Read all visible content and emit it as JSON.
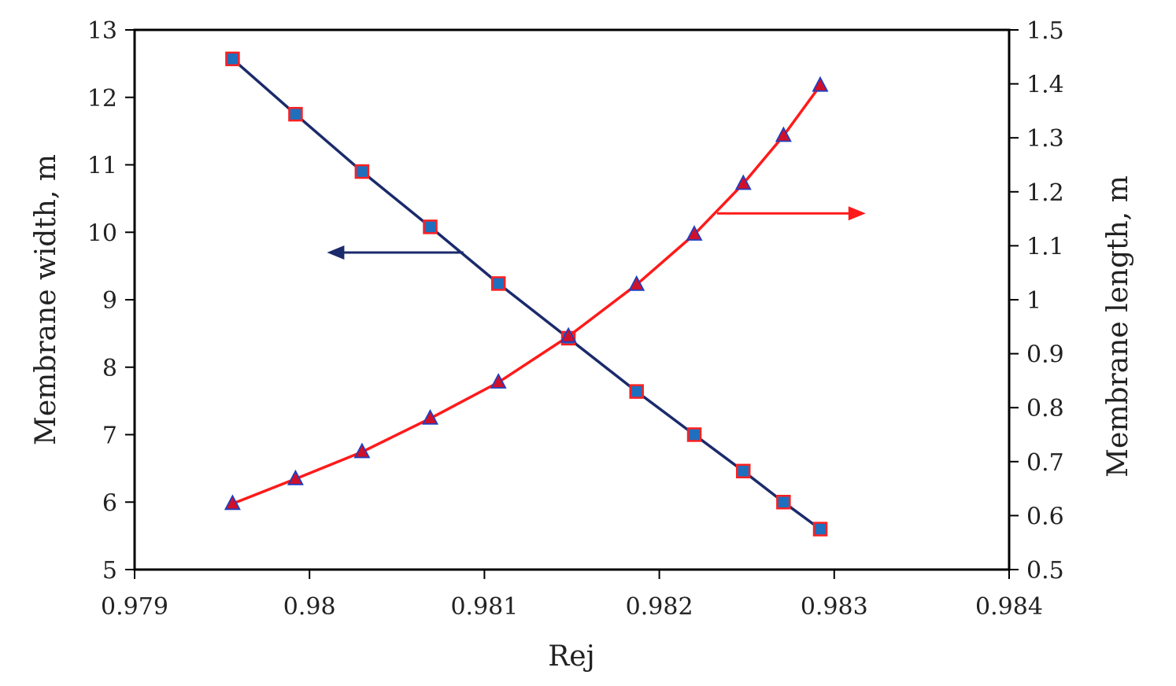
{
  "chart_data": {
    "type": "line",
    "title": "",
    "xlabel": "Rej",
    "ylabel_left": "Membrane  width,  m",
    "ylabel_right": "Membrane  length,  m",
    "xlim": [
      0.979,
      0.984
    ],
    "ylim_left": [
      5,
      13
    ],
    "ylim_right": [
      0.5,
      1.5
    ],
    "x_ticks": [
      "0.979",
      "0.98",
      "0.981",
      "0.982",
      "0.983",
      "0.984"
    ],
    "y_left_ticks": [
      "5",
      "6",
      "7",
      "8",
      "9",
      "10",
      "11",
      "12",
      "13"
    ],
    "y_right_ticks": [
      "0.5",
      "0.6",
      "0.7",
      "0.8",
      "0.9",
      "1",
      "1.1",
      "1.2",
      "1.3",
      "1.4",
      "1.5"
    ],
    "grid": false,
    "legend": "none",
    "series": [
      {
        "axis": "left",
        "color": "#1b2a6b",
        "marker": "square",
        "marker_fill": "#1f6fbf",
        "marker_edge": "#ff2020",
        "points": [
          [
            0.97956,
            12.57
          ],
          [
            0.97992,
            11.75
          ],
          [
            0.9803,
            10.9
          ],
          [
            0.98069,
            10.08
          ],
          [
            0.98108,
            9.24
          ],
          [
            0.98148,
            8.43
          ],
          [
            0.98187,
            7.64
          ],
          [
            0.9822,
            7.0
          ],
          [
            0.98248,
            6.46
          ],
          [
            0.98271,
            6.0
          ],
          [
            0.98292,
            5.6
          ]
        ]
      },
      {
        "axis": "right",
        "color": "#ff1a1a",
        "marker": "triangle",
        "marker_fill": "#d0102a",
        "marker_edge": "#1f3fbf",
        "points": [
          [
            0.97956,
            0.622
          ],
          [
            0.97992,
            0.668
          ],
          [
            0.9803,
            0.718
          ],
          [
            0.98069,
            0.78
          ],
          [
            0.98108,
            0.847
          ],
          [
            0.98148,
            0.932
          ],
          [
            0.98187,
            1.028
          ],
          [
            0.9822,
            1.121
          ],
          [
            0.98248,
            1.215
          ],
          [
            0.98271,
            1.304
          ],
          [
            0.98292,
            1.397
          ]
        ]
      }
    ],
    "annotations": [
      {
        "type": "arrow",
        "color": "#1b2a6b",
        "direction": "left",
        "from": [
          0.98088,
          9.7
        ],
        "to": [
          0.9801,
          9.7
        ],
        "axis": "left"
      },
      {
        "type": "arrow",
        "color": "#ff1a1a",
        "direction": "right",
        "from": [
          0.98233,
          1.16
        ],
        "to": [
          0.98318,
          1.16
        ],
        "axis": "right"
      }
    ]
  }
}
